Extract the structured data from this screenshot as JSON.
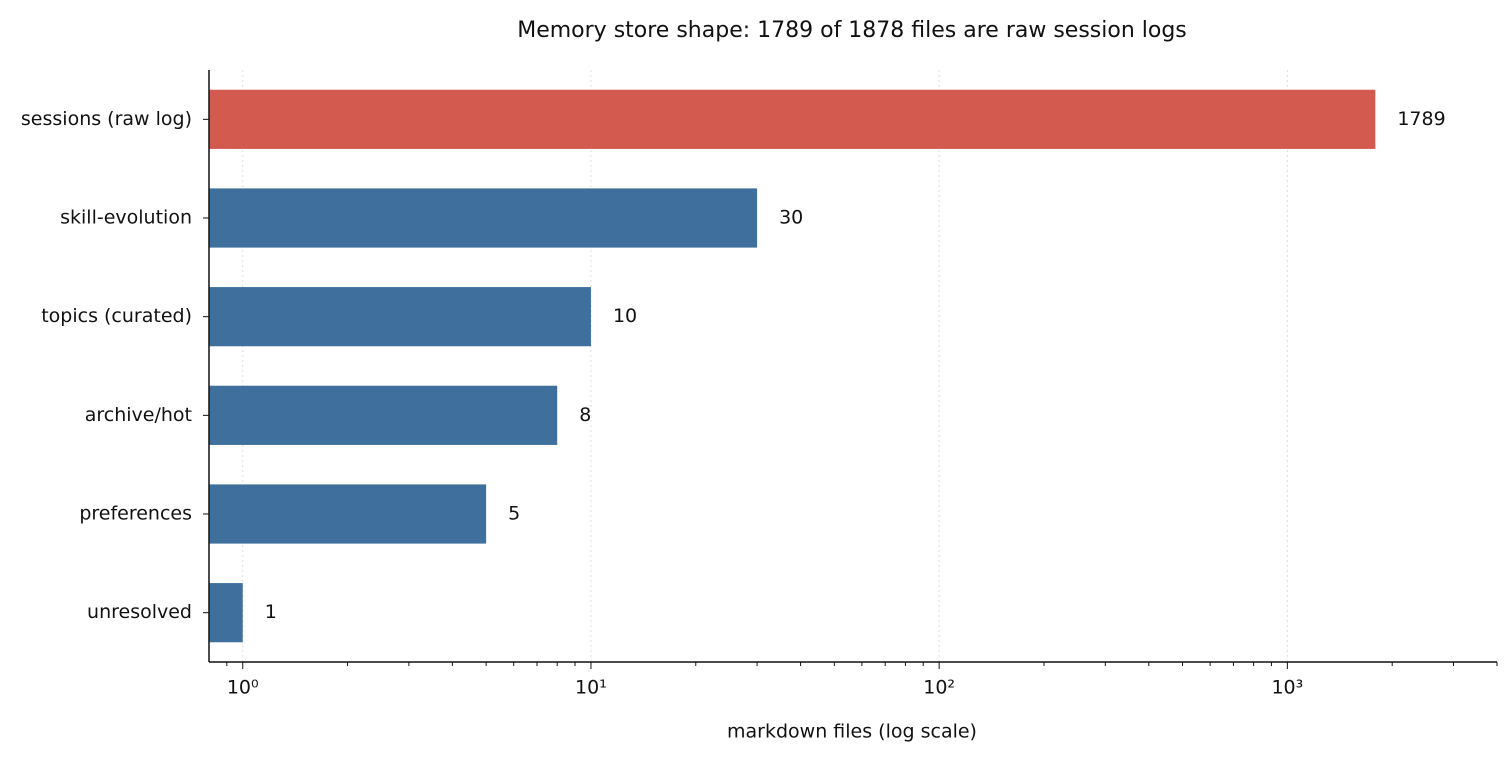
{
  "chart_data": {
    "type": "bar",
    "orientation": "horizontal",
    "title": "Memory store shape: 1789 of 1878 files are raw session logs",
    "x_label": "markdown files (log scale)",
    "categories": [
      "sessions (raw log)",
      "skill-evolution",
      "topics (curated)",
      "archive/hot",
      "preferences",
      "unresolved"
    ],
    "values": [
      1789,
      30,
      10,
      8,
      5,
      1
    ],
    "colors": [
      "#d35a4f",
      "#3f709d",
      "#3f709d",
      "#3f709d",
      "#3f709d",
      "#3f709d"
    ],
    "xscale": "log",
    "xlim": [
      0.8,
      4000
    ],
    "xticks": [
      {
        "value": 1,
        "label": "10⁰"
      },
      {
        "value": 10,
        "label": "10¹"
      },
      {
        "value": 100,
        "label": "10²"
      },
      {
        "value": 1000,
        "label": "10³"
      }
    ],
    "xminor_ticks": [
      0.9,
      2,
      3,
      4,
      5,
      6,
      7,
      8,
      9,
      20,
      30,
      40,
      50,
      60,
      70,
      80,
      90,
      200,
      300,
      400,
      500,
      600,
      700,
      800,
      900,
      2000,
      3000,
      4000
    ],
    "grid": true
  }
}
